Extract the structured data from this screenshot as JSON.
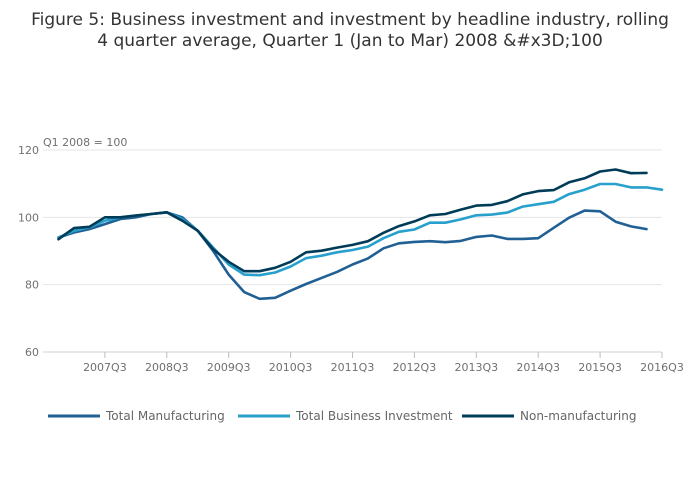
{
  "chart_data": {
    "type": "line",
    "title_lines": [
      "Figure 5: Business investment and investment by headline industry, rolling",
      "4 quarter average, Quarter 1 (Jan to Mar) 2008 &#x3D;100"
    ],
    "unit_label": "Q1 2008 = 100",
    "ylim": [
      60,
      120
    ],
    "yticks": [
      60,
      80,
      100,
      120
    ],
    "x_start": "2006Q3",
    "x_end": "2016Q3",
    "xticks": [
      "2007Q3",
      "2008Q3",
      "2009Q3",
      "2010Q3",
      "2011Q3",
      "2012Q3",
      "2013Q3",
      "2014Q3",
      "2015Q3",
      "2016Q3"
    ],
    "x": [
      "2006Q4",
      "2007Q1",
      "2007Q2",
      "2007Q3",
      "2007Q4",
      "2008Q1",
      "2008Q2",
      "2008Q3",
      "2008Q4",
      "2009Q1",
      "2009Q2",
      "2009Q3",
      "2009Q4",
      "2010Q1",
      "2010Q2",
      "2010Q3",
      "2010Q4",
      "2011Q1",
      "2011Q2",
      "2011Q3",
      "2011Q4",
      "2012Q1",
      "2012Q2",
      "2012Q3",
      "2012Q4",
      "2013Q1",
      "2013Q2",
      "2013Q3",
      "2013Q4",
      "2014Q1",
      "2014Q2",
      "2014Q3",
      "2014Q4",
      "2015Q1",
      "2015Q2",
      "2015Q3",
      "2015Q4",
      "2016Q1",
      "2016Q2",
      "2016Q3"
    ],
    "series": [
      {
        "name": "Total Manufacturing",
        "color": "#206095",
        "values": [
          94,
          95.5,
          96.5,
          98,
          99.5,
          100,
          101,
          101.5,
          100,
          96,
          90,
          83,
          77.8,
          75.8,
          76.1,
          78.2,
          80.2,
          82,
          83.8,
          86,
          87.8,
          90.8,
          92.3,
          92.7,
          92.9,
          92.6,
          93,
          94.2,
          94.6,
          93.6,
          93.6,
          93.8,
          96.9,
          99.9,
          102,
          101.8,
          98.7,
          97.3,
          96.5,
          null
        ]
      },
      {
        "name": "Total Business Investment",
        "color": "#27a0cc",
        "values": [
          94,
          96,
          97,
          99,
          100,
          100.5,
          101,
          101.5,
          99.5,
          96,
          91,
          86,
          83,
          82.8,
          83.6,
          85.4,
          87.9,
          88.6,
          89.6,
          90.3,
          91.3,
          93.8,
          95.7,
          96.4,
          98.4,
          98.4,
          99.4,
          100.6,
          100.8,
          101.4,
          103.2,
          103.9,
          104.6,
          106.9,
          108.2,
          109.9,
          109.9,
          108.9,
          108.9,
          108.2
        ]
      },
      {
        "name": "Non-manufacturing",
        "color": "#003c57",
        "values": [
          93.5,
          96.8,
          97.2,
          100,
          100,
          100.5,
          101,
          101.5,
          99,
          96,
          90.5,
          86.8,
          84,
          84,
          85,
          86.8,
          89.6,
          90.1,
          91,
          91.8,
          92.9,
          95.4,
          97.4,
          98.8,
          100.6,
          101,
          102.3,
          103.5,
          103.7,
          104.8,
          106.8,
          107.8,
          108.1,
          110.4,
          111.6,
          113.6,
          114.2,
          113.1,
          113.2,
          null
        ]
      }
    ]
  }
}
